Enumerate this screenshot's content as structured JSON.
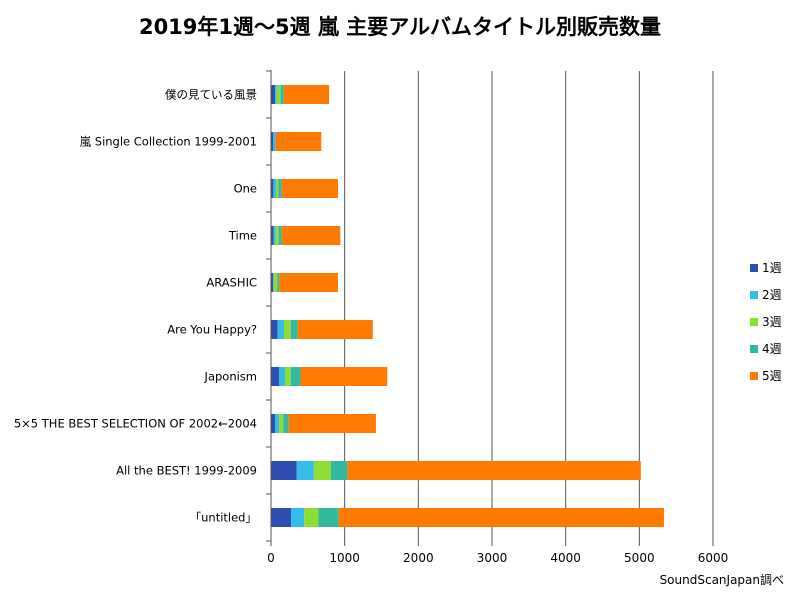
{
  "chart_data": {
    "type": "bar",
    "orientation": "horizontal",
    "stacked": true,
    "title": "2019年1週～5週 嵐 主要アルバムタイトル別販売数量",
    "categories": [
      "僕の見ている風景",
      "嵐 Single Collection 1999-2001",
      "One",
      "Time",
      "ARASHIC",
      "Are You Happy?",
      "Japonism",
      "5×5 THE BEST SELECTION OF 2002←2004",
      "All the BEST! 1999-2009",
      "「untitled」"
    ],
    "series": [
      {
        "name": "1週",
        "color": "#2f4fb5",
        "values": [
          55,
          27,
          32,
          36,
          27,
          91,
          109,
          55,
          350,
          273
        ]
      },
      {
        "name": "2週",
        "color": "#33bde8",
        "values": [
          20,
          36,
          36,
          27,
          9,
          86,
          82,
          55,
          232,
          177
        ]
      },
      {
        "name": "3週",
        "color": "#8fdc35",
        "values": [
          55,
          0,
          32,
          41,
          50,
          91,
          77,
          59,
          232,
          195
        ]
      },
      {
        "name": "4週",
        "color": "#33b9a0",
        "values": [
          45,
          0,
          45,
          41,
          27,
          95,
          132,
          73,
          223,
          273
        ]
      },
      {
        "name": "5週",
        "color": "#ff7a00",
        "values": [
          614,
          619,
          764,
          796,
          796,
          1019,
          1178,
          1182,
          3983,
          4416
        ]
      }
    ],
    "xlim": [
      0,
      6000
    ],
    "xticks": [
      "0",
      "1000",
      "2000",
      "3000",
      "4000",
      "5000",
      "6000"
    ],
    "grid": true,
    "legend": "right",
    "source_note": "SoundScanJapan調べ"
  }
}
